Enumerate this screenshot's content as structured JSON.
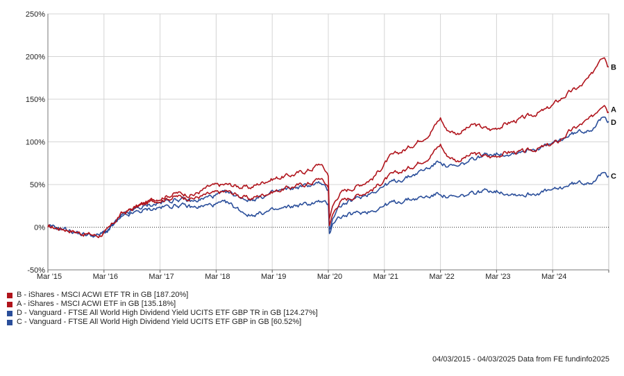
{
  "chart_data": {
    "type": "line",
    "x_axis": {
      "tick_labels": [
        "Mar '15",
        "Mar '16",
        "Mar '17",
        "Mar '18",
        "Mar '19",
        "Mar '20",
        "Mar '21",
        "Mar '22",
        "Mar '23",
        "Mar '24"
      ],
      "range": [
        "2015-03-04",
        "2025-03-04"
      ]
    },
    "y_axis": {
      "tick_labels": [
        "250%",
        "200%",
        "150%",
        "100%",
        "50%",
        "0%",
        "-50%"
      ],
      "ylim": [
        -50,
        250
      ],
      "ticks": [
        250,
        200,
        150,
        100,
        50,
        0,
        -50
      ]
    },
    "grid": true,
    "zero_line": "dotted",
    "series": [
      {
        "id": "B",
        "color": "#b0141c",
        "end_label": "B",
        "x": [
          0,
          0.3,
          0.6,
          0.9,
          1.05,
          1.3,
          1.6,
          1.9,
          2.3,
          2.6,
          2.9,
          3.2,
          3.6,
          3.9,
          4.1,
          4.4,
          4.7,
          4.85,
          5.0,
          5.02,
          5.08,
          5.2,
          5.5,
          5.8,
          6.1,
          6.4,
          6.8,
          7.0,
          7.1,
          7.3,
          7.6,
          7.9,
          8.2,
          8.5,
          8.9,
          9.1,
          9.3,
          9.5,
          9.7,
          9.85,
          9.92,
          10.0
        ],
        "values": [
          0,
          -2,
          -7,
          -10,
          -5,
          15,
          25,
          33,
          40,
          38,
          48,
          50,
          46,
          55,
          58,
          62,
          68,
          75,
          62,
          10,
          25,
          40,
          48,
          58,
          82,
          92,
          110,
          128,
          115,
          110,
          120,
          114,
          122,
          128,
          138,
          148,
          158,
          165,
          178,
          200,
          203,
          188
        ]
      },
      {
        "id": "A",
        "color": "#b0141c",
        "end_label": "A",
        "x": [
          0,
          0.3,
          0.6,
          0.9,
          1.05,
          1.3,
          1.6,
          1.9,
          2.3,
          2.6,
          2.9,
          3.2,
          3.6,
          3.9,
          4.1,
          4.4,
          4.7,
          4.85,
          5.0,
          5.02,
          5.08,
          5.2,
          5.5,
          5.8,
          6.1,
          6.4,
          6.8,
          7.0,
          7.1,
          7.3,
          7.6,
          7.9,
          8.2,
          8.5,
          8.9,
          9.1,
          9.3,
          9.5,
          9.7,
          9.85,
          9.92,
          10.0
        ],
        "values": [
          0,
          -2,
          -7,
          -10,
          -5,
          15,
          24,
          31,
          36,
          34,
          39,
          42,
          33,
          40,
          43,
          48,
          52,
          58,
          48,
          2,
          15,
          30,
          37,
          45,
          60,
          68,
          83,
          97,
          85,
          78,
          86,
          82,
          88,
          88,
          95,
          100,
          112,
          120,
          128,
          142,
          147,
          135
        ]
      },
      {
        "id": "D",
        "color": "#2a4e9a",
        "end_label": "D",
        "x": [
          0,
          0.3,
          0.6,
          0.9,
          1.05,
          1.3,
          1.6,
          1.9,
          2.3,
          2.6,
          2.9,
          3.2,
          3.6,
          3.9,
          4.1,
          4.4,
          4.7,
          4.85,
          5.0,
          5.02,
          5.08,
          5.2,
          5.5,
          5.8,
          6.1,
          6.4,
          6.8,
          7.0,
          7.1,
          7.3,
          7.6,
          7.9,
          8.2,
          8.5,
          8.9,
          9.1,
          9.3,
          9.5,
          9.7,
          9.85,
          9.92,
          10.0
        ],
        "values": [
          0,
          -2,
          -8,
          -10,
          -4,
          12,
          22,
          27,
          33,
          30,
          36,
          40,
          32,
          37,
          42,
          46,
          50,
          52,
          42,
          -4,
          12,
          25,
          33,
          42,
          52,
          58,
          70,
          78,
          72,
          70,
          80,
          87,
          86,
          90,
          95,
          100,
          108,
          112,
          116,
          125,
          128,
          124
        ]
      },
      {
        "id": "C",
        "color": "#2a4e9a",
        "end_label": "C",
        "x": [
          0,
          0.3,
          0.6,
          0.9,
          1.05,
          1.3,
          1.6,
          1.9,
          2.3,
          2.6,
          2.9,
          3.2,
          3.6,
          3.9,
          4.1,
          4.4,
          4.7,
          4.85,
          5.0,
          5.02,
          5.08,
          5.2,
          5.5,
          5.8,
          6.1,
          6.4,
          6.8,
          7.0,
          7.1,
          7.3,
          7.6,
          7.9,
          8.2,
          8.5,
          8.9,
          9.1,
          9.3,
          9.5,
          9.7,
          9.85,
          9.92,
          10.0
        ],
        "values": [
          0,
          -2,
          -8,
          -10,
          -5,
          10,
          18,
          22,
          26,
          23,
          26,
          28,
          14,
          18,
          20,
          25,
          28,
          30,
          26,
          -8,
          6,
          12,
          16,
          20,
          28,
          32,
          36,
          40,
          36,
          34,
          40,
          44,
          40,
          38,
          42,
          44,
          50,
          52,
          54,
          60,
          63,
          60
        ]
      }
    ]
  },
  "legend": [
    {
      "color": "#b0141c",
      "label": "B - iShares - MSCI ACWI ETF TR in GB [187.20%]"
    },
    {
      "color": "#b0141c",
      "label": "A - iShares - MSCI ACWI ETF in GB [135.18%]"
    },
    {
      "color": "#2a4e9a",
      "label": "D - Vanguard - FTSE All World High Dividend Yield UCITS ETF GBP TR in GB [124.27%]"
    },
    {
      "color": "#2a4e9a",
      "label": "C - Vanguard - FTSE All World High Dividend Yield UCITS ETF GBP in GB [60.52%]"
    }
  ],
  "footer": "04/03/2015 - 04/03/2025 Data from FE fundinfo2025"
}
